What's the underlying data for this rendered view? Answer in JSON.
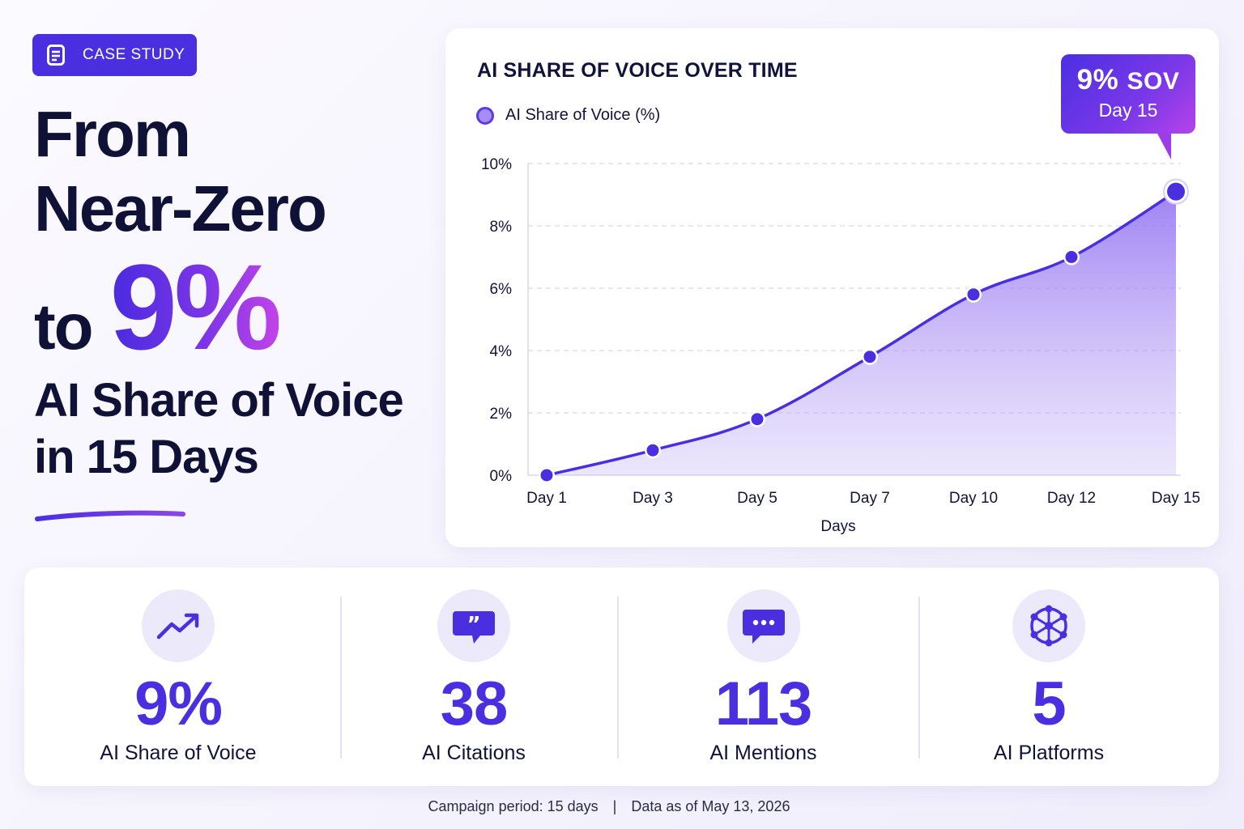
{
  "badge": {
    "label": "CASE STUDY",
    "icon": "document-icon"
  },
  "headline": {
    "line1": "From",
    "line2": "Near-Zero",
    "line3_prefix": "to",
    "line3_highlight": "9%",
    "line4": "AI Share of Voice",
    "line5": "in 15 Days"
  },
  "colors": {
    "accent": "#4a2fe0",
    "gradient_end": "#c143e8",
    "area_fill": "#9b7bf0"
  },
  "chart_data": {
    "type": "area",
    "title": "AI SHARE OF VOICE OVER TIME",
    "xlabel": "Days",
    "ylabel": "",
    "categories": [
      "Day 1",
      "Day 3",
      "Day 5",
      "Day 7",
      "Day 10",
      "Day 12",
      "Day 15"
    ],
    "series": [
      {
        "name": "AI Share of Voice (%)",
        "values": [
          0,
          0.8,
          1.8,
          3.8,
          5.8,
          7.0,
          9.1
        ]
      }
    ],
    "ylim": [
      0,
      10
    ],
    "yticks": [
      "0%",
      "2%",
      "4%",
      "6%",
      "8%",
      "10%"
    ],
    "grid": true,
    "legend": "top-left",
    "callout": {
      "value": "9%",
      "unit": "SOV",
      "label": "Day 15"
    }
  },
  "stats": [
    {
      "value": "9%",
      "label": "AI Share of Voice",
      "icon": "trending-up-icon"
    },
    {
      "value": "38",
      "label": "AI Citations",
      "icon": "quote-icon"
    },
    {
      "value": "113",
      "label": "AI Mentions",
      "icon": "chat-bubble-icon"
    },
    {
      "value": "5",
      "label": "AI Platforms",
      "icon": "network-icon"
    }
  ],
  "footer": {
    "period": "Campaign period: 15 days",
    "separator": "|",
    "as_of": "Data as of May 13, 2026"
  }
}
